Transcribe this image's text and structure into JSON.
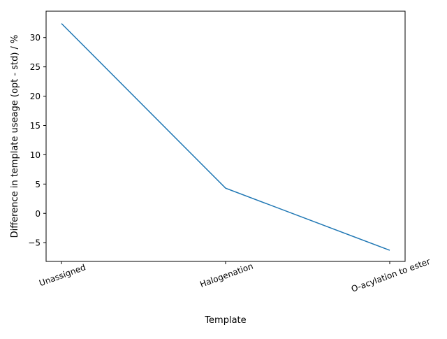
{
  "chart_data": {
    "type": "line",
    "title": "",
    "xlabel": "Template",
    "ylabel": "Difference in template useage (opt - std) / %",
    "categories": [
      "Unassigned",
      "Halogenation",
      "O-acylation to ester"
    ],
    "series": [
      {
        "values": [
          32.4,
          4.3,
          -6.3
        ],
        "color": "#1f77b4"
      }
    ],
    "ylim": [
      -8.2,
      34.5
    ],
    "yticks": [
      -5,
      0,
      5,
      10,
      15,
      20,
      25,
      30
    ],
    "grid": false,
    "legend": "none"
  }
}
